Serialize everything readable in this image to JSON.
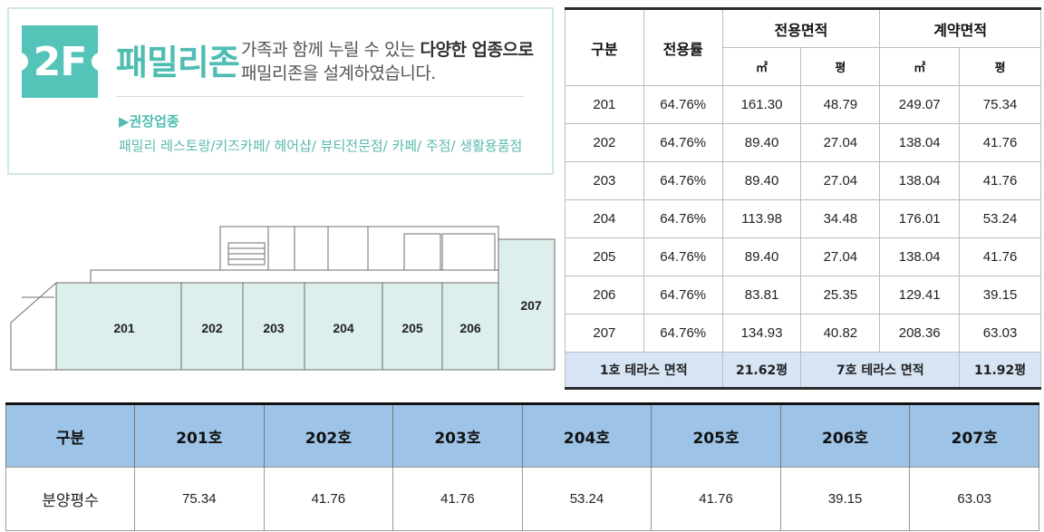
{
  "header": {
    "badge": "2F",
    "zone_name": "패밀리존",
    "desc_line1_pre": "가족과 함께 누릴 수 있는 ",
    "desc_line1_bold": "다양한 업종으로",
    "desc_line2": "패밀리존을 설계하였습니다.",
    "recommended_title": "▶권장업종",
    "recommended_items": "패밀리 레스토랑/키즈카페/ 헤어샵/ 뷰티전문점/ 카페/ 주점/ 생활용품점"
  },
  "floor_plan": {
    "units": [
      "201",
      "202",
      "203",
      "204",
      "205",
      "206",
      "207"
    ]
  },
  "area_table": {
    "col_division": "구분",
    "col_ratio": "전용률",
    "col_exclusive": "전용면적",
    "col_contract": "계약면적",
    "unit_m2": "㎡",
    "unit_pyeong": "평",
    "rows": [
      {
        "unit": "201",
        "ratio": "64.76%",
        "ex_m2": "161.30",
        "ex_py": "48.79",
        "ct_m2": "249.07",
        "ct_py": "75.34"
      },
      {
        "unit": "202",
        "ratio": "64.76%",
        "ex_m2": "89.40",
        "ex_py": "27.04",
        "ct_m2": "138.04",
        "ct_py": "41.76"
      },
      {
        "unit": "203",
        "ratio": "64.76%",
        "ex_m2": "89.40",
        "ex_py": "27.04",
        "ct_m2": "138.04",
        "ct_py": "41.76"
      },
      {
        "unit": "204",
        "ratio": "64.76%",
        "ex_m2": "113.98",
        "ex_py": "34.48",
        "ct_m2": "176.01",
        "ct_py": "53.24"
      },
      {
        "unit": "205",
        "ratio": "64.76%",
        "ex_m2": "89.40",
        "ex_py": "27.04",
        "ct_m2": "138.04",
        "ct_py": "41.76"
      },
      {
        "unit": "206",
        "ratio": "64.76%",
        "ex_m2": "83.81",
        "ex_py": "25.35",
        "ct_m2": "129.41",
        "ct_py": "39.15"
      },
      {
        "unit": "207",
        "ratio": "64.76%",
        "ex_m2": "134.93",
        "ex_py": "40.82",
        "ct_m2": "208.36",
        "ct_py": "63.03"
      }
    ],
    "footer": {
      "terrace1_label": "1호 테라스 면적",
      "terrace1_value": "21.62평",
      "terrace7_label": "7호 테라스 면적",
      "terrace7_value": "11.92평"
    }
  },
  "sale_table": {
    "col_division": "구분",
    "headers": [
      "201호",
      "202호",
      "203호",
      "204호",
      "205호",
      "206호",
      "207호"
    ],
    "row_label": "분양평수",
    "values": [
      "75.34",
      "41.76",
      "41.76",
      "53.24",
      "41.76",
      "39.15",
      "63.03"
    ]
  },
  "colors": {
    "mint": "#55c4b8",
    "plan_fill": "#dcefec",
    "table_header_blue": "#9dc3e6",
    "table_footer_blue": "#d6e4f4"
  }
}
